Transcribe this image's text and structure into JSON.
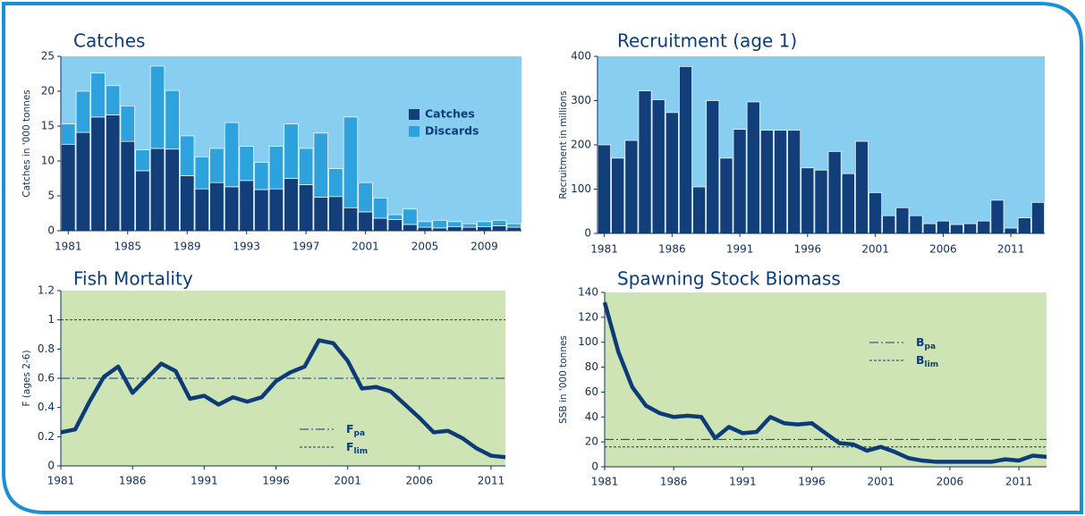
{
  "chart_data": [
    {
      "type": "stacked_bar",
      "title": "Catches",
      "y_label": "Catches in '000 tonnes",
      "categories": [
        "1981",
        null,
        null,
        null,
        "1985",
        null,
        null,
        null,
        "1989",
        null,
        null,
        null,
        "1993",
        null,
        null,
        null,
        "1997",
        null,
        null,
        null,
        "2001",
        null,
        null,
        null,
        "2005",
        null,
        null,
        null,
        "2009",
        null,
        null
      ],
      "series": [
        {
          "name": "Catches",
          "color": "#123f7a",
          "values": [
            12.4,
            14.1,
            16.3,
            16.6,
            12.8,
            8.6,
            11.8,
            11.7,
            7.9,
            6.0,
            6.9,
            6.3,
            7.2,
            5.9,
            6.0,
            7.5,
            6.6,
            4.8,
            4.9,
            3.3,
            2.7,
            1.8,
            1.6,
            0.9,
            0.5,
            0.4,
            0.6,
            0.5,
            0.6,
            0.7,
            0.5
          ]
        },
        {
          "name": "Discards",
          "color": "#2ea2dc",
          "values": [
            2.9,
            5.9,
            6.3,
            4.2,
            5.1,
            3.0,
            11.8,
            8.4,
            5.7,
            4.6,
            4.9,
            9.2,
            4.9,
            3.9,
            6.1,
            7.8,
            5.2,
            9.2,
            4.0,
            13.0,
            4.2,
            2.9,
            0.7,
            2.2,
            0.8,
            1.1,
            0.7,
            0.5,
            0.7,
            0.8,
            0.5
          ]
        }
      ],
      "ylim": [
        0,
        25
      ],
      "yticks": [
        0,
        5,
        10,
        15,
        20,
        25
      ],
      "background": "#87cef1",
      "legend": "right"
    },
    {
      "type": "bar",
      "title": "Recruitment (age 1)",
      "y_label": "Recruitment in millions",
      "categories": [
        "1981",
        null,
        null,
        null,
        null,
        "1986",
        null,
        null,
        null,
        null,
        "1991",
        null,
        null,
        null,
        null,
        "1996",
        null,
        null,
        null,
        null,
        "2001",
        null,
        null,
        null,
        null,
        "2006",
        null,
        null,
        null,
        null,
        "2011",
        null,
        null
      ],
      "values": [
        200,
        170,
        210,
        322,
        302,
        273,
        377,
        105,
        300,
        170,
        235,
        297,
        233,
        233,
        233,
        148,
        143,
        185,
        135,
        208,
        92,
        40,
        58,
        40,
        22,
        28,
        20,
        22,
        28,
        75,
        12,
        35,
        70
      ],
      "color": "#123f7a",
      "ylim": [
        0,
        400
      ],
      "yticks": [
        0,
        100,
        200,
        300,
        400
      ],
      "background": "#87cef1"
    },
    {
      "type": "line",
      "title": "Fish Mortality",
      "y_label": "F (ages 2-6)",
      "x": [
        1981,
        1982,
        1983,
        1984,
        1985,
        1986,
        1987,
        1988,
        1989,
        1990,
        1991,
        1992,
        1993,
        1994,
        1995,
        1996,
        1997,
        1998,
        1999,
        2000,
        2001,
        2002,
        2003,
        2004,
        2005,
        2006,
        2007,
        2008,
        2009,
        2010,
        2011,
        2012
      ],
      "values": [
        0.23,
        0.25,
        0.44,
        0.61,
        0.68,
        0.5,
        0.6,
        0.7,
        0.65,
        0.46,
        0.48,
        0.42,
        0.47,
        0.44,
        0.47,
        0.58,
        0.64,
        0.68,
        0.86,
        0.84,
        0.72,
        0.53,
        0.54,
        0.51,
        0.42,
        0.33,
        0.23,
        0.24,
        0.19,
        0.12,
        0.07,
        0.06
      ],
      "color": "#0c3c78",
      "xlim": [
        1981,
        2012
      ],
      "xticks": [
        1981,
        1986,
        1991,
        1996,
        2001,
        2006,
        2011
      ],
      "ylim": [
        0,
        1.2
      ],
      "yticks": [
        0,
        0.2,
        0.4,
        0.6,
        0.8,
        1,
        1.2
      ],
      "background": "#cfe4b4",
      "reference_lines": [
        {
          "name": "F",
          "sub": "pa",
          "value": 0.6,
          "style": "dashdot"
        },
        {
          "name": "F",
          "sub": "lim",
          "value": 1,
          "style": "dashed"
        }
      ]
    },
    {
      "type": "line",
      "title": "Spawning Stock Biomass",
      "y_label": "SSB in '000 tonnes",
      "x": [
        1981,
        1982,
        1983,
        1984,
        1985,
        1986,
        1987,
        1988,
        1989,
        1990,
        1991,
        1992,
        1993,
        1994,
        1995,
        1996,
        1997,
        1998,
        1999,
        2000,
        2001,
        2002,
        2003,
        2004,
        2005,
        2006,
        2007,
        2008,
        2009,
        2010,
        2011,
        2012,
        2013
      ],
      "values": [
        132,
        92,
        64,
        49,
        43,
        40,
        41,
        40,
        23,
        32,
        27,
        28,
        40,
        35,
        34,
        35,
        27,
        19,
        18,
        13,
        16,
        12,
        7,
        5,
        4,
        4,
        4,
        4,
        4,
        6,
        5,
        9,
        8
      ],
      "color": "#0c3c78",
      "xlim": [
        1981,
        2013
      ],
      "xticks": [
        1981,
        1986,
        1991,
        1996,
        2001,
        2006,
        2011
      ],
      "ylim": [
        0,
        140
      ],
      "yticks": [
        0,
        20,
        40,
        60,
        80,
        100,
        120,
        140
      ],
      "background": "#cfe4b4",
      "reference_lines": [
        {
          "name": "B",
          "sub": "pa",
          "value": 22,
          "style": "dashdot"
        },
        {
          "name": "B",
          "sub": "lim",
          "value": 16,
          "style": "dashed"
        }
      ]
    }
  ]
}
